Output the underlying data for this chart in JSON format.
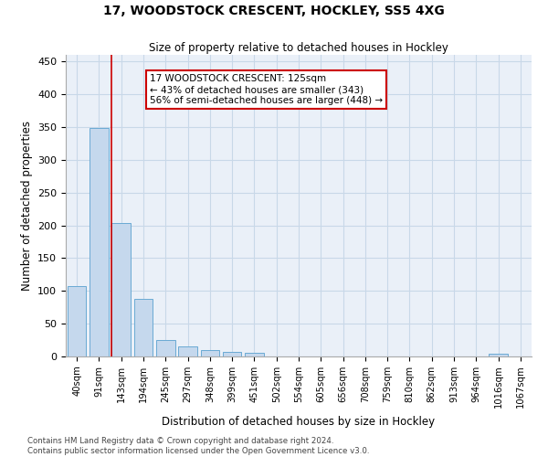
{
  "title": "17, WOODSTOCK CRESCENT, HOCKLEY, SS5 4XG",
  "subtitle": "Size of property relative to detached houses in Hockley",
  "xlabel": "Distribution of detached houses by size in Hockley",
  "ylabel": "Number of detached properties",
  "categories": [
    "40sqm",
    "91sqm",
    "143sqm",
    "194sqm",
    "245sqm",
    "297sqm",
    "348sqm",
    "399sqm",
    "451sqm",
    "502sqm",
    "554sqm",
    "605sqm",
    "656sqm",
    "708sqm",
    "759sqm",
    "810sqm",
    "862sqm",
    "913sqm",
    "964sqm",
    "1016sqm",
    "1067sqm"
  ],
  "values": [
    107,
    348,
    203,
    88,
    25,
    16,
    10,
    7,
    5,
    0,
    0,
    0,
    0,
    0,
    0,
    0,
    0,
    0,
    0,
    4,
    0
  ],
  "bar_color": "#c5d8ed",
  "bar_edge_color": "#6aaad4",
  "grid_color": "#c8d8e8",
  "bg_color": "#eaf0f8",
  "annotation_text": "17 WOODSTOCK CRESCENT: 125sqm\n← 43% of detached houses are smaller (343)\n56% of semi-detached houses are larger (448) →",
  "annotation_box_color": "#ffffff",
  "annotation_border_color": "#cc0000",
  "ylim": [
    0,
    460
  ],
  "yticks": [
    0,
    50,
    100,
    150,
    200,
    250,
    300,
    350,
    400,
    450
  ],
  "footer_line1": "Contains HM Land Registry data © Crown copyright and database right 2024.",
  "footer_line2": "Contains public sector information licensed under the Open Government Licence v3.0."
}
